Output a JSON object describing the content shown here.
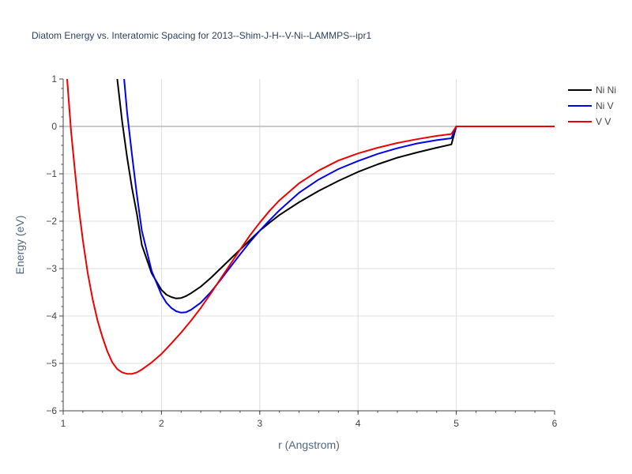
{
  "chart_data": {
    "type": "line",
    "title": "Diatom Energy vs. Interatomic Spacing for 2013--Shim-J-H--V-Ni--LAMMPS--ipr1",
    "xlabel": "r (Angstrom)",
    "ylabel": "Energy (eV)",
    "xlim": [
      1,
      6
    ],
    "ylim": [
      -6,
      1
    ],
    "x_ticks": [
      1,
      2,
      3,
      4,
      5,
      6
    ],
    "y_ticks": [
      1,
      0,
      -1,
      -2,
      -3,
      -4,
      -5,
      -6
    ],
    "x_tick_labels": [
      "1",
      "2",
      "3",
      "4",
      "5",
      "6"
    ],
    "y_tick_labels": [
      "1",
      "0",
      "−1",
      "−2",
      "−3",
      "−4",
      "−5",
      "−6"
    ],
    "grid": true,
    "legend_position": "top-right",
    "series": [
      {
        "name": "Ni Ni",
        "color": "#000000",
        "x": [
          1.55,
          1.6,
          1.65,
          1.7,
          1.75,
          1.8,
          1.9,
          2.0,
          2.05,
          2.1,
          2.15,
          2.2,
          2.25,
          2.3,
          2.4,
          2.5,
          2.6,
          2.7,
          2.8,
          2.9,
          3.0,
          3.1,
          3.2,
          3.4,
          3.6,
          3.8,
          4.0,
          4.2,
          4.4,
          4.6,
          4.8,
          4.95,
          5.0,
          5.2,
          5.5,
          6.0
        ],
        "y": [
          1.0,
          0.1,
          -0.65,
          -1.3,
          -1.85,
          -2.5,
          -3.1,
          -3.45,
          -3.55,
          -3.6,
          -3.63,
          -3.62,
          -3.58,
          -3.52,
          -3.38,
          -3.2,
          -3.0,
          -2.8,
          -2.6,
          -2.4,
          -2.2,
          -2.03,
          -1.87,
          -1.6,
          -1.36,
          -1.15,
          -0.96,
          -0.8,
          -0.66,
          -0.55,
          -0.45,
          -0.38,
          0.0,
          0.0,
          0.0,
          0.0
        ]
      },
      {
        "name": "Ni V",
        "color": "#0000ee",
        "x": [
          1.62,
          1.65,
          1.7,
          1.75,
          1.8,
          1.9,
          2.0,
          2.05,
          2.1,
          2.15,
          2.2,
          2.25,
          2.3,
          2.4,
          2.5,
          2.6,
          2.7,
          2.8,
          2.9,
          3.0,
          3.1,
          3.2,
          3.4,
          3.6,
          3.8,
          4.0,
          4.2,
          4.4,
          4.6,
          4.8,
          4.95,
          5.0,
          5.2,
          5.5,
          6.0
        ],
        "y": [
          1.0,
          0.3,
          -0.6,
          -1.45,
          -2.2,
          -3.05,
          -3.55,
          -3.72,
          -3.83,
          -3.9,
          -3.93,
          -3.92,
          -3.87,
          -3.72,
          -3.5,
          -3.24,
          -2.97,
          -2.7,
          -2.44,
          -2.2,
          -1.98,
          -1.77,
          -1.4,
          -1.12,
          -0.9,
          -0.73,
          -0.58,
          -0.46,
          -0.36,
          -0.29,
          -0.25,
          0.0,
          0.0,
          0.0,
          0.0
        ]
      },
      {
        "name": "V V",
        "color": "#ee0000",
        "x": [
          1.04,
          1.08,
          1.12,
          1.16,
          1.2,
          1.25,
          1.3,
          1.35,
          1.4,
          1.45,
          1.5,
          1.55,
          1.6,
          1.65,
          1.7,
          1.75,
          1.8,
          1.9,
          2.0,
          2.1,
          2.2,
          2.3,
          2.4,
          2.5,
          2.6,
          2.7,
          2.8,
          2.9,
          3.0,
          3.1,
          3.2,
          3.4,
          3.6,
          3.8,
          4.0,
          4.2,
          4.4,
          4.6,
          4.8,
          4.95,
          5.0,
          5.2,
          5.5,
          6.0
        ],
        "y": [
          1.0,
          -0.1,
          -0.95,
          -1.75,
          -2.4,
          -3.1,
          -3.65,
          -4.1,
          -4.45,
          -4.75,
          -4.98,
          -5.12,
          -5.19,
          -5.22,
          -5.22,
          -5.19,
          -5.13,
          -4.98,
          -4.8,
          -4.58,
          -4.35,
          -4.1,
          -3.83,
          -3.53,
          -3.22,
          -2.91,
          -2.6,
          -2.3,
          -2.03,
          -1.78,
          -1.56,
          -1.2,
          -0.93,
          -0.72,
          -0.57,
          -0.45,
          -0.35,
          -0.27,
          -0.2,
          -0.16,
          0.0,
          0.0,
          0.0,
          0.0
        ]
      }
    ]
  }
}
